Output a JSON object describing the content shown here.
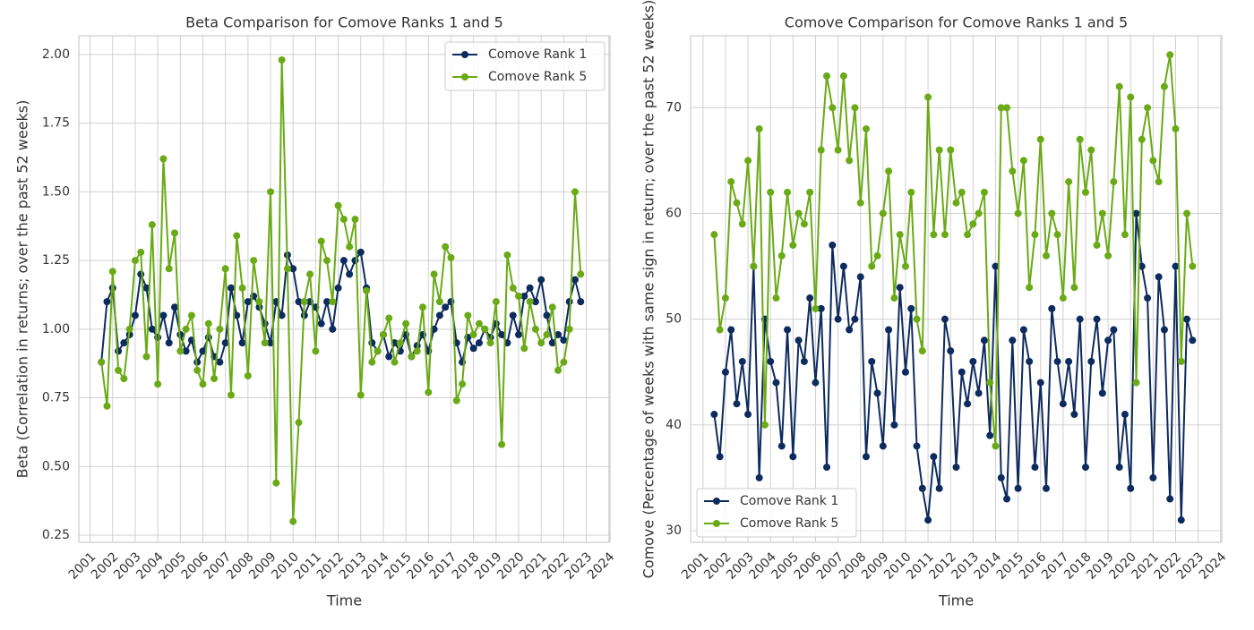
{
  "chart_data": [
    {
      "type": "line",
      "title": "Beta Comparison for Comove Ranks 1 and 5",
      "xlabel": "Time",
      "ylabel": "Beta (Correlation in returns; over the past 52 weeks)",
      "x": [
        2001.5,
        2001.75,
        2002,
        2002.25,
        2002.5,
        2002.75,
        2003,
        2003.25,
        2003.5,
        2003.75,
        2004,
        2004.25,
        2004.5,
        2004.75,
        2005,
        2005.25,
        2005.5,
        2005.75,
        2006,
        2006.25,
        2006.5,
        2006.75,
        2007,
        2007.25,
        2007.5,
        2007.75,
        2008,
        2008.25,
        2008.5,
        2008.75,
        2009,
        2009.25,
        2009.5,
        2009.75,
        2010,
        2010.25,
        2010.5,
        2010.75,
        2011,
        2011.25,
        2011.5,
        2011.75,
        2012,
        2012.25,
        2012.5,
        2012.75,
        2013,
        2013.25,
        2013.5,
        2013.75,
        2014,
        2014.25,
        2014.5,
        2014.75,
        2015,
        2015.25,
        2015.5,
        2015.75,
        2016,
        2016.25,
        2016.5,
        2016.75,
        2017,
        2017.25,
        2017.5,
        2017.75,
        2018,
        2018.25,
        2018.5,
        2018.75,
        2019,
        2019.25,
        2019.5,
        2019.75,
        2020,
        2020.25,
        2020.5,
        2020.75,
        2021,
        2021.25,
        2021.5,
        2021.75,
        2022,
        2022.25,
        2022.5,
        2022.75
      ],
      "series": [
        {
          "name": "Comove Rank 1",
          "color": "#0d2b5e",
          "values": [
            0.88,
            1.1,
            1.15,
            0.92,
            0.95,
            0.98,
            1.05,
            1.2,
            1.15,
            1.0,
            0.97,
            1.05,
            0.95,
            1.08,
            0.98,
            0.92,
            0.96,
            0.88,
            0.92,
            0.97,
            0.9,
            0.88,
            0.95,
            1.15,
            1.05,
            0.95,
            1.1,
            1.12,
            1.08,
            1.02,
            0.95,
            1.1,
            1.05,
            1.27,
            1.22,
            1.1,
            1.05,
            1.1,
            1.08,
            1.02,
            1.1,
            1.0,
            1.15,
            1.25,
            1.2,
            1.25,
            1.28,
            1.15,
            0.95,
            0.92,
            0.98,
            0.9,
            0.95,
            0.92,
            0.98,
            0.9,
            0.94,
            0.98,
            0.92,
            1.0,
            1.05,
            1.08,
            1.1,
            0.95,
            0.88,
            0.97,
            0.93,
            0.95,
            1.0,
            0.97,
            1.02,
            0.98,
            0.95,
            1.05,
            0.98,
            1.12,
            1.15,
            1.1,
            1.18,
            1.05,
            0.95,
            0.98,
            0.96,
            1.1,
            1.18,
            1.1
          ]
        },
        {
          "name": "Comove Rank 5",
          "color": "#6aaa16",
          "values": [
            0.88,
            0.72,
            1.21,
            0.85,
            0.82,
            1.0,
            1.25,
            1.28,
            0.9,
            1.38,
            0.8,
            1.62,
            1.22,
            1.35,
            0.92,
            1.0,
            1.05,
            0.85,
            0.8,
            1.02,
            0.82,
            1.0,
            1.22,
            0.76,
            1.34,
            1.15,
            0.83,
            1.25,
            1.1,
            0.95,
            1.5,
            0.44,
            1.98,
            1.22,
            0.3,
            0.66,
            1.1,
            1.2,
            0.92,
            1.32,
            1.25,
            1.1,
            1.45,
            1.4,
            1.3,
            1.4,
            0.76,
            1.14,
            0.88,
            0.92,
            0.98,
            1.04,
            0.88,
            0.95,
            1.02,
            0.9,
            0.92,
            1.08,
            0.77,
            1.2,
            1.1,
            1.3,
            1.26,
            0.74,
            0.8,
            1.05,
            0.98,
            1.02,
            1.0,
            0.95,
            1.1,
            0.58,
            1.27,
            1.15,
            1.12,
            0.93,
            1.1,
            1.0,
            0.95,
            0.98,
            1.08,
            0.85,
            0.88,
            1.0,
            1.5,
            1.2
          ]
        }
      ],
      "xlim": [
        2000.5,
        2024.05
      ],
      "ylim": [
        0.224,
        2.068
      ],
      "xticks": [
        2001,
        2002,
        2003,
        2004,
        2005,
        2006,
        2007,
        2008,
        2009,
        2010,
        2011,
        2012,
        2013,
        2014,
        2015,
        2016,
        2017,
        2018,
        2019,
        2020,
        2021,
        2022,
        2023,
        2024
      ],
      "yticks": [
        0.25,
        {
          "value": 0.5,
          "label": "0.50"
        },
        0.75,
        {
          "value": 1,
          "label": "1.00"
        },
        1.25,
        {
          "value": 1.5,
          "label": "1.50"
        },
        1.75,
        {
          "value": 2,
          "label": "2.00"
        }
      ],
      "grid": true,
      "legend": "upper right"
    },
    {
      "type": "line",
      "title": "Comove Comparison for Comove Ranks 1 and 5",
      "xlabel": "Time",
      "ylabel": "Comove (Percentage of weeks with same sign in return; over the past 52 weeks)",
      "x": [
        2001.5,
        2001.75,
        2002,
        2002.25,
        2002.5,
        2002.75,
        2003,
        2003.25,
        2003.5,
        2003.75,
        2004,
        2004.25,
        2004.5,
        2004.75,
        2005,
        2005.25,
        2005.5,
        2005.75,
        2006,
        2006.25,
        2006.5,
        2006.75,
        2007,
        2007.25,
        2007.5,
        2007.75,
        2008,
        2008.25,
        2008.5,
        2008.75,
        2009,
        2009.25,
        2009.5,
        2009.75,
        2010,
        2010.25,
        2010.5,
        2010.75,
        2011,
        2011.25,
        2011.5,
        2011.75,
        2012,
        2012.25,
        2012.5,
        2012.75,
        2013,
        2013.25,
        2013.5,
        2013.75,
        2014,
        2014.25,
        2014.5,
        2014.75,
        2015,
        2015.25,
        2015.5,
        2015.75,
        2016,
        2016.25,
        2016.5,
        2016.75,
        2017,
        2017.25,
        2017.5,
        2017.75,
        2018,
        2018.25,
        2018.5,
        2018.75,
        2019,
        2019.25,
        2019.5,
        2019.75,
        2020,
        2020.25,
        2020.5,
        2020.75,
        2021,
        2021.25,
        2021.5,
        2021.75,
        2022,
        2022.25,
        2022.5,
        2022.75
      ],
      "series": [
        {
          "name": "Comove Rank 1",
          "color": "#0d2b5e",
          "values": [
            41,
            37,
            45,
            49,
            42,
            46,
            41,
            55,
            35,
            50,
            46,
            44,
            38,
            49,
            37,
            48,
            46,
            52,
            44,
            51,
            36,
            57,
            50,
            55,
            49,
            50,
            54,
            37,
            46,
            43,
            38,
            49,
            40,
            53,
            45,
            51,
            38,
            34,
            31,
            37,
            34,
            50,
            47,
            36,
            45,
            42,
            46,
            43,
            48,
            39,
            55,
            35,
            33,
            48,
            34,
            49,
            46,
            36,
            44,
            34,
            51,
            46,
            42,
            46,
            41,
            50,
            36,
            46,
            50,
            43,
            48,
            49,
            36,
            41,
            34,
            60,
            55,
            52,
            35,
            54,
            49,
            33,
            55,
            31,
            50,
            48
          ]
        },
        {
          "name": "Comove Rank 5",
          "color": "#6aaa16",
          "values": [
            58,
            49,
            52,
            63,
            61,
            59,
            65,
            55,
            68,
            40,
            62,
            52,
            56,
            62,
            57,
            60,
            59,
            62,
            51,
            66,
            73,
            70,
            66,
            73,
            65,
            70,
            61,
            68,
            55,
            56,
            60,
            64,
            52,
            58,
            55,
            62,
            50,
            47,
            71,
            58,
            66,
            58,
            66,
            61,
            62,
            58,
            59,
            60,
            62,
            44,
            38,
            70,
            70,
            64,
            60,
            65,
            53,
            58,
            67,
            56,
            60,
            58,
            52,
            63,
            53,
            67,
            62,
            66,
            57,
            60,
            56,
            63,
            72,
            58,
            71,
            44,
            67,
            70,
            65,
            63,
            72,
            75,
            68,
            46,
            60,
            55
          ]
        }
      ],
      "xlim": [
        2000.45,
        2024.05
      ],
      "ylim": [
        28.9,
        76.8
      ],
      "xticks": [
        2001,
        2002,
        2003,
        2004,
        2005,
        2006,
        2007,
        2008,
        2009,
        2010,
        2011,
        2012,
        2013,
        2014,
        2015,
        2016,
        2017,
        2018,
        2019,
        2020,
        2021,
        2022,
        2023,
        2024
      ],
      "yticks": [
        30,
        40,
        50,
        60,
        70
      ],
      "grid": true,
      "legend": "lower left"
    }
  ]
}
